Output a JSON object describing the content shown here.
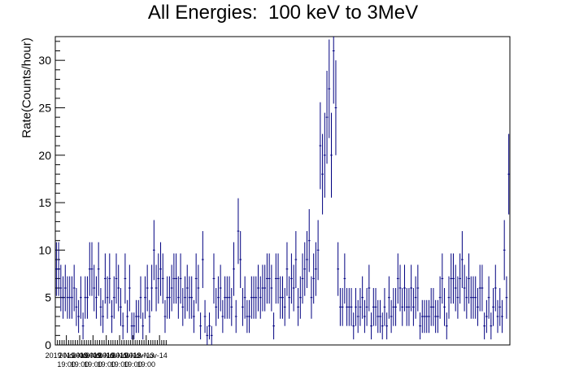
{
  "chart_data": {
    "type": "scatter",
    "title": "All Energies:  100 keV to 3MeV",
    "ylabel": "Rate(Counts/hour)",
    "xlabel": "",
    "ylim": [
      0,
      32.5
    ],
    "yticks": [
      "0",
      "5",
      "10",
      "15",
      "20",
      "25",
      "30"
    ],
    "xticks": [
      {
        "date": "2019-Nov-08",
        "time": "19:00"
      },
      {
        "date": "2019-Nov-09",
        "time": "19:00"
      },
      {
        "date": "2019-Nov-10",
        "time": "19:00"
      },
      {
        "date": "2019-Nov-11",
        "time": "19:00"
      },
      {
        "date": "2019-Nov-12",
        "time": "19:00"
      },
      {
        "date": "2019-Nov-13",
        "time": "19:00"
      },
      {
        "date": "2019-Nov-14",
        "time": "19:00"
      }
    ],
    "x_start": "2019-Nov-07 23:00",
    "bin_hours": 4,
    "error_bars": "sqrt(counts)",
    "color": "#000080",
    "values": [
      8,
      8,
      6,
      5,
      6,
      5,
      5,
      5,
      6,
      4,
      3,
      5,
      2,
      5,
      5,
      8,
      8,
      6,
      5,
      8,
      4,
      3,
      7,
      5,
      7,
      3,
      5,
      7,
      6,
      4,
      2,
      7,
      3,
      6,
      2,
      2,
      3,
      3,
      5,
      2,
      5,
      6,
      3,
      6,
      10,
      6,
      7,
      8,
      7,
      3,
      5,
      5,
      6,
      7,
      7,
      5,
      7,
      4,
      5,
      6,
      5,
      5,
      3,
      7,
      6,
      2,
      9,
      3,
      1,
      2,
      1,
      7,
      4,
      5,
      6,
      3,
      5,
      5,
      5,
      4,
      8,
      3,
      12,
      9,
      4,
      5,
      3,
      3,
      5,
      5,
      5,
      6,
      5,
      6,
      6,
      7,
      7,
      6,
      2,
      7,
      7,
      5,
      5,
      4,
      8,
      5,
      7,
      6,
      9,
      4,
      5,
      7,
      8,
      9,
      11,
      5,
      7,
      8,
      10,
      21,
      18,
      20,
      24,
      27,
      20,
      31,
      25,
      8,
      4,
      4,
      7,
      4,
      4,
      4,
      2,
      4,
      3,
      4,
      5,
      3,
      4,
      6,
      2,
      4,
      4,
      3,
      3,
      2,
      4,
      2,
      5,
      3,
      4,
      4,
      7,
      6,
      4,
      6,
      4,
      4,
      6,
      4,
      5,
      6,
      2,
      3,
      3,
      3,
      3,
      4,
      4,
      3,
      3,
      5,
      7,
      4,
      2,
      5,
      7,
      7,
      6,
      5,
      7,
      9,
      6,
      5,
      7,
      5,
      5,
      5,
      4,
      6,
      6,
      2,
      3,
      5,
      2,
      4,
      6,
      3,
      4,
      3,
      10,
      5,
      18
    ]
  }
}
